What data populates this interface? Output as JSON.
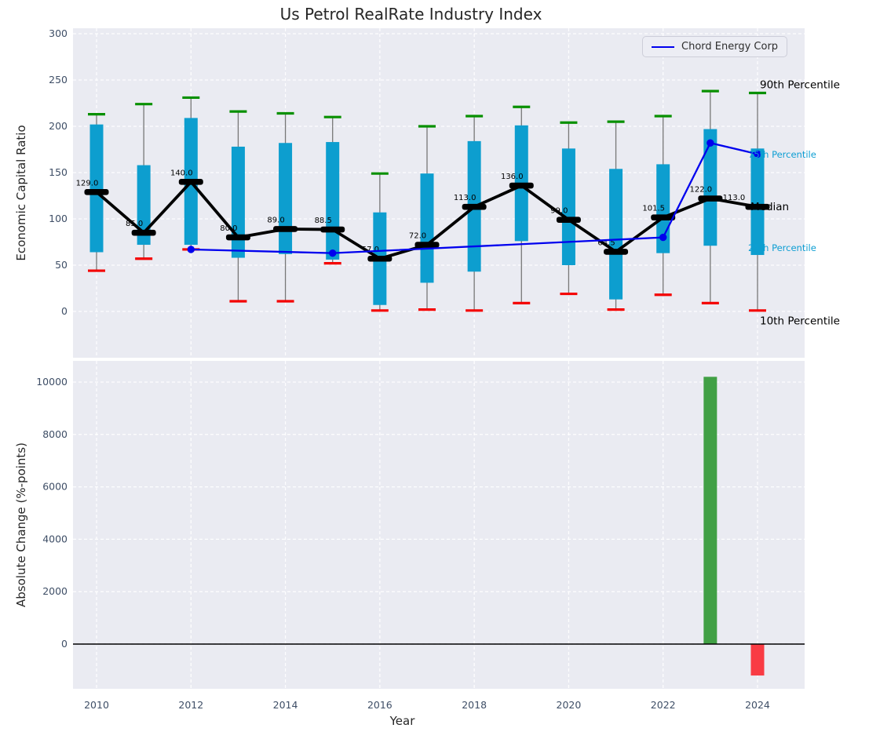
{
  "figure_title": "Us Petrol RealRate Industry Index",
  "chart_data": [
    {
      "type": "boxplot",
      "subtype": "percentile-candles-with-median-line-and-company-line",
      "title": "Us Petrol RealRate Industry Index",
      "ylabel": "Economic Capital Ratio",
      "grid": true,
      "legend_position": "upper right",
      "yticks": [
        0,
        50,
        100,
        150,
        200,
        250,
        300
      ],
      "ylim": [
        -50,
        306
      ],
      "xticks": [
        2010,
        2012,
        2014,
        2016,
        2018,
        2020,
        2022,
        2024
      ],
      "years": [
        2010,
        2011,
        2012,
        2013,
        2014,
        2015,
        2016,
        2017,
        2018,
        2019,
        2020,
        2021,
        2022,
        2023,
        2024
      ],
      "p90": [
        213,
        224,
        231,
        216,
        214,
        210,
        149,
        200,
        211,
        221,
        204,
        205,
        211,
        238,
        236
      ],
      "p75": [
        202,
        158,
        209,
        178,
        182,
        183,
        107,
        149,
        184,
        201,
        176,
        154,
        159,
        197,
        176
      ],
      "median": [
        129,
        85,
        140,
        80,
        89,
        88.5,
        57,
        72,
        113,
        136,
        99,
        64.5,
        101.5,
        122,
        113
      ],
      "median_labels": [
        "129.0",
        "85.0",
        "140.0",
        "80.0",
        "89.0",
        "88.5",
        "57.0",
        "72.0",
        "113.0",
        "136.0",
        "99.0",
        "64.5",
        "101.5",
        "122.0",
        "113.0"
      ],
      "p25": [
        64,
        72,
        72,
        58,
        62,
        56,
        7,
        31,
        43,
        76,
        50,
        13,
        63,
        71,
        61
      ],
      "p10": [
        44,
        57,
        67,
        11,
        11,
        52,
        1,
        2,
        1,
        9,
        19,
        2,
        18,
        9,
        1
      ],
      "legend": {
        "label": "Chord Energy Corp"
      },
      "company_line": {
        "name": "Chord Energy Corp",
        "years": [
          2012,
          2015,
          2022,
          2023,
          2024
        ],
        "values": [
          67,
          63,
          80,
          182,
          170
        ]
      },
      "annotations": [
        {
          "label": "90th Percentile",
          "value": 245,
          "style": "dark"
        },
        {
          "label": "75th Percentile",
          "value": 170,
          "style": "cyan"
        },
        {
          "label": "Median",
          "value": 113,
          "style": "dark"
        },
        {
          "label": "25th Percentile",
          "value": 69,
          "style": "cyan"
        },
        {
          "label": "10th Percentile",
          "value": -10,
          "style": "dark"
        }
      ],
      "colors": {
        "box": "#0d9ecf",
        "whisker": "#777777",
        "cap_90th": "#089000",
        "cap_10th": "#f40000",
        "median": "#000000",
        "company_line": "#0000ee",
        "panel_bg": "#eaebf2",
        "grid": "#ffffff",
        "tick_label": "#3e4e66",
        "annotation_cyan": "#0d9ed3",
        "annotation_dark": "#000000"
      }
    },
    {
      "type": "bar",
      "ylabel": "Absolute Change (%-points)",
      "xlabel": "Year",
      "grid": true,
      "yticks": [
        0,
        2000,
        4000,
        6000,
        8000,
        10000
      ],
      "ylim": [
        -1800,
        10800
      ],
      "xticks": [
        2010,
        2012,
        2014,
        2016,
        2018,
        2020,
        2022,
        2024
      ],
      "bars": [
        {
          "year": 2023,
          "value": 10200,
          "color": "#41a045"
        },
        {
          "year": 2024,
          "value": -1200,
          "color": "#f93b44"
        }
      ],
      "zero_line_color": "#000000",
      "panel_bg": "#eaebf2"
    }
  ]
}
